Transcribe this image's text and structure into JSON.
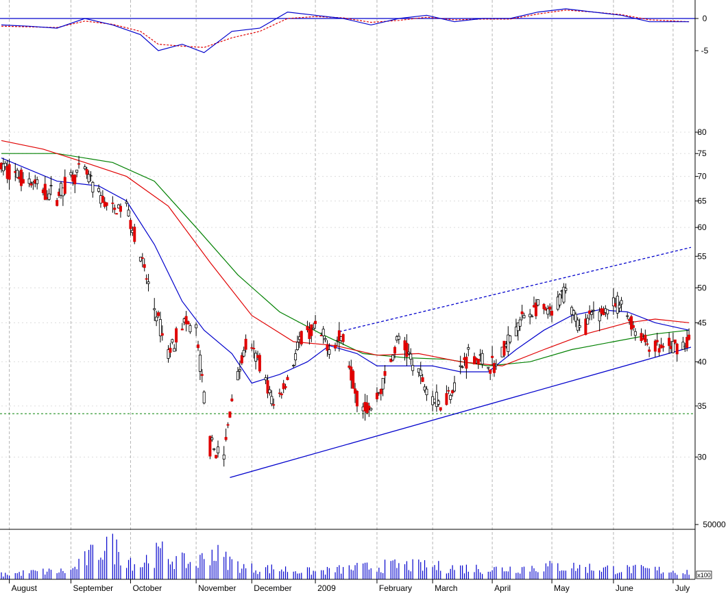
{
  "chart_data": {
    "type": "candlestick",
    "title": "",
    "price_axis": {
      "scale": "log",
      "range": [
        26,
        85
      ],
      "ticks": [
        30,
        35,
        40,
        45,
        50,
        55,
        60,
        65,
        70,
        75,
        80
      ]
    },
    "oscillator_axis": {
      "range": [
        -8,
        2.5
      ],
      "ticks": [
        0,
        -5
      ],
      "zero_line": 0
    },
    "volume_axis": {
      "ticks": [
        50000
      ],
      "multiplier_label": "x100"
    },
    "x_axis": {
      "start": "2008-07-28",
      "end": "2009-07-10",
      "labels": [
        {
          "text": "August",
          "date": "2008-08-01"
        },
        {
          "text": "September",
          "date": "2008-09-01"
        },
        {
          "text": "October",
          "date": "2008-10-01"
        },
        {
          "text": "November",
          "date": "2008-11-03"
        },
        {
          "text": "December",
          "date": "2008-12-01"
        },
        {
          "text": "2009",
          "date": "2009-01-02"
        },
        {
          "text": "February",
          "date": "2009-02-02"
        },
        {
          "text": "March",
          "date": "2009-03-02"
        },
        {
          "text": "April",
          "date": "2009-04-01"
        },
        {
          "text": "May",
          "date": "2009-05-01"
        },
        {
          "text": "June",
          "date": "2009-06-01"
        },
        {
          "text": "July",
          "date": "2009-07-01"
        }
      ]
    },
    "candles_close_path": [
      [
        "2008-07-28",
        72
      ],
      [
        "2008-08-04",
        70.5
      ],
      [
        "2008-08-11",
        69
      ],
      [
        "2008-08-18",
        67
      ],
      [
        "2008-08-25",
        66
      ],
      [
        "2008-09-01",
        70
      ],
      [
        "2008-09-08",
        71
      ],
      [
        "2008-09-15",
        66
      ],
      [
        "2008-09-22",
        63
      ],
      [
        "2008-09-29",
        64
      ],
      [
        "2008-10-06",
        55
      ],
      [
        "2008-10-13",
        47
      ],
      [
        "2008-10-20",
        41
      ],
      [
        "2008-10-27",
        45
      ],
      [
        "2008-11-03",
        44
      ],
      [
        "2008-11-10",
        31
      ],
      [
        "2008-11-17",
        30
      ],
      [
        "2008-11-21",
        36
      ],
      [
        "2008-11-28",
        42
      ],
      [
        "2008-12-05",
        40
      ],
      [
        "2008-12-12",
        35
      ],
      [
        "2008-12-19",
        38
      ],
      [
        "2008-12-26",
        43
      ],
      [
        "2009-01-02",
        44
      ],
      [
        "2009-01-09",
        42
      ],
      [
        "2009-01-16",
        43
      ],
      [
        "2009-01-23",
        36
      ],
      [
        "2009-01-30",
        34.5
      ],
      [
        "2009-02-06",
        38
      ],
      [
        "2009-02-13",
        43
      ],
      [
        "2009-02-20",
        40
      ],
      [
        "2009-02-27",
        37
      ],
      [
        "2009-03-06",
        35
      ],
      [
        "2009-03-13",
        37.5
      ],
      [
        "2009-03-20",
        41
      ],
      [
        "2009-03-27",
        40
      ],
      [
        "2009-04-03",
        39.5
      ],
      [
        "2009-04-10",
        43
      ],
      [
        "2009-04-17",
        46
      ],
      [
        "2009-04-24",
        47
      ],
      [
        "2009-05-01",
        46
      ],
      [
        "2009-05-08",
        50
      ],
      [
        "2009-05-15",
        44
      ],
      [
        "2009-05-22",
        46
      ],
      [
        "2009-05-29",
        47
      ],
      [
        "2009-06-05",
        47.5
      ],
      [
        "2009-06-12",
        44
      ],
      [
        "2009-06-19",
        42
      ],
      [
        "2009-06-26",
        41.5
      ],
      [
        "2009-07-03",
        42
      ],
      [
        "2009-07-09",
        42.5
      ]
    ],
    "ma_short": [
      [
        "2008-07-28",
        74
      ],
      [
        "2008-08-25",
        69
      ],
      [
        "2008-09-15",
        68
      ],
      [
        "2008-09-29",
        65
      ],
      [
        "2008-10-13",
        57
      ],
      [
        "2008-10-27",
        48
      ],
      [
        "2008-11-07",
        44
      ],
      [
        "2008-11-21",
        41
      ],
      [
        "2008-12-01",
        37.5
      ],
      [
        "2008-12-15",
        38.5
      ],
      [
        "2008-12-29",
        40
      ],
      [
        "2009-01-09",
        42
      ],
      [
        "2009-01-23",
        41
      ],
      [
        "2009-02-02",
        39.5
      ],
      [
        "2009-02-16",
        39.5
      ],
      [
        "2009-03-02",
        39.5
      ],
      [
        "2009-03-16",
        38.8
      ],
      [
        "2009-03-30",
        38.8
      ],
      [
        "2009-04-13",
        41.5
      ],
      [
        "2009-04-27",
        44
      ],
      [
        "2009-05-11",
        46
      ],
      [
        "2009-05-25",
        46.8
      ],
      [
        "2009-06-08",
        46.5
      ],
      [
        "2009-06-22",
        45
      ],
      [
        "2009-07-09",
        44
      ]
    ],
    "ma_medium": [
      [
        "2008-07-28",
        78
      ],
      [
        "2008-08-18",
        76
      ],
      [
        "2008-09-08",
        73
      ],
      [
        "2008-09-29",
        70
      ],
      [
        "2008-10-20",
        64
      ],
      [
        "2008-11-10",
        54
      ],
      [
        "2008-12-01",
        46
      ],
      [
        "2008-12-22",
        42.5
      ],
      [
        "2009-01-12",
        42
      ],
      [
        "2009-02-02",
        40.8
      ],
      [
        "2009-02-23",
        41
      ],
      [
        "2009-03-16",
        40
      ],
      [
        "2009-04-06",
        39.5
      ],
      [
        "2009-04-27",
        41.5
      ],
      [
        "2009-05-18",
        43.5
      ],
      [
        "2009-06-08",
        45
      ],
      [
        "2009-06-22",
        45.5
      ],
      [
        "2009-07-09",
        45
      ]
    ],
    "ma_long": [
      [
        "2008-07-28",
        75
      ],
      [
        "2008-08-25",
        75
      ],
      [
        "2008-09-22",
        73
      ],
      [
        "2008-10-13",
        69
      ],
      [
        "2008-11-03",
        60
      ],
      [
        "2008-11-24",
        52
      ],
      [
        "2008-12-15",
        46.5
      ],
      [
        "2009-01-05",
        43.5
      ],
      [
        "2009-01-26",
        41
      ],
      [
        "2009-02-16",
        40.5
      ],
      [
        "2009-03-09",
        40.3
      ],
      [
        "2009-03-30",
        39.5
      ],
      [
        "2009-04-20",
        40
      ],
      [
        "2009-05-11",
        41.5
      ],
      [
        "2009-06-01",
        42.5
      ],
      [
        "2009-06-22",
        43.5
      ],
      [
        "2009-07-09",
        44
      ]
    ],
    "oscillator_main": [
      [
        "2008-07-28",
        -1
      ],
      [
        "2008-08-11",
        -1.2
      ],
      [
        "2008-08-25",
        -1.5
      ],
      [
        "2008-09-08",
        0
      ],
      [
        "2008-09-22",
        -1
      ],
      [
        "2008-10-06",
        -2.5
      ],
      [
        "2008-10-15",
        -5
      ],
      [
        "2008-10-27",
        -4
      ],
      [
        "2008-11-07",
        -5.3
      ],
      [
        "2008-11-21",
        -2
      ],
      [
        "2008-12-05",
        -1.5
      ],
      [
        "2008-12-19",
        1
      ],
      [
        "2009-01-02",
        0.5
      ],
      [
        "2009-01-16",
        0
      ],
      [
        "2009-01-30",
        -1
      ],
      [
        "2009-02-13",
        0
      ],
      [
        "2009-02-27",
        0.5
      ],
      [
        "2009-03-13",
        -0.5
      ],
      [
        "2009-03-27",
        0
      ],
      [
        "2009-04-10",
        0
      ],
      [
        "2009-04-24",
        1
      ],
      [
        "2009-05-08",
        1.5
      ],
      [
        "2009-05-22",
        1
      ],
      [
        "2009-06-05",
        0.5
      ],
      [
        "2009-06-19",
        -0.5
      ],
      [
        "2009-07-09",
        -0.5
      ]
    ],
    "oscillator_signal": [
      [
        "2008-07-28",
        -1.2
      ],
      [
        "2008-08-11",
        -1.3
      ],
      [
        "2008-08-25",
        -1.4
      ],
      [
        "2008-09-08",
        -0.4
      ],
      [
        "2008-09-22",
        -0.9
      ],
      [
        "2008-10-06",
        -2
      ],
      [
        "2008-10-15",
        -4
      ],
      [
        "2008-10-27",
        -4.3
      ],
      [
        "2008-11-07",
        -4.5
      ],
      [
        "2008-11-21",
        -3
      ],
      [
        "2008-12-05",
        -2
      ],
      [
        "2008-12-19",
        0
      ],
      [
        "2009-01-02",
        0.3
      ],
      [
        "2009-01-16",
        0.1
      ],
      [
        "2009-01-30",
        -0.6
      ],
      [
        "2009-02-13",
        -0.3
      ],
      [
        "2009-02-27",
        0.2
      ],
      [
        "2009-03-13",
        -0.2
      ],
      [
        "2009-03-27",
        -0.1
      ],
      [
        "2009-04-10",
        -0.1
      ],
      [
        "2009-04-24",
        0.7
      ],
      [
        "2009-05-08",
        1.3
      ],
      [
        "2009-05-22",
        1
      ],
      [
        "2009-06-05",
        0.6
      ],
      [
        "2009-06-19",
        -0.2
      ],
      [
        "2009-07-09",
        -0.5
      ]
    ],
    "volume": [
      [
        "2008-07-28",
        5000
      ],
      [
        "2008-08-15",
        8000
      ],
      [
        "2008-09-01",
        9000
      ],
      [
        "2008-09-19",
        38000
      ],
      [
        "2008-10-06",
        14000
      ],
      [
        "2008-10-10",
        24000
      ],
      [
        "2008-10-17",
        28000
      ],
      [
        "2008-10-24",
        20000
      ],
      [
        "2008-11-03",
        16000
      ],
      [
        "2008-11-10",
        30000
      ],
      [
        "2008-11-17",
        22000
      ],
      [
        "2008-11-28",
        12000
      ],
      [
        "2008-12-15",
        11000
      ],
      [
        "2009-01-02",
        8000
      ],
      [
        "2009-01-23",
        12000
      ],
      [
        "2009-02-13",
        15000
      ],
      [
        "2009-03-06",
        13000
      ],
      [
        "2009-04-03",
        11000
      ],
      [
        "2009-05-04",
        14000
      ],
      [
        "2009-06-01",
        11000
      ],
      [
        "2009-06-22",
        10000
      ],
      [
        "2009-07-09",
        8000
      ]
    ],
    "support_level": 34.2,
    "trendlines": [
      {
        "style": "solid",
        "from": [
          "2008-11-20",
          28.2
        ],
        "to": [
          "2009-07-10",
          41.8
        ],
        "color": "#0000cc"
      },
      {
        "style": "dashed",
        "from": [
          "2009-01-14",
          43.8
        ],
        "to": [
          "2009-07-10",
          56.5
        ],
        "color": "#0000cc"
      }
    ],
    "colors": {
      "up": "#000000",
      "down": "#e00000",
      "ma_short": "#0000cc",
      "ma_medium": "#e00000",
      "ma_long": "#008000",
      "support": "#008000",
      "grid": "#b4b4b4"
    }
  }
}
